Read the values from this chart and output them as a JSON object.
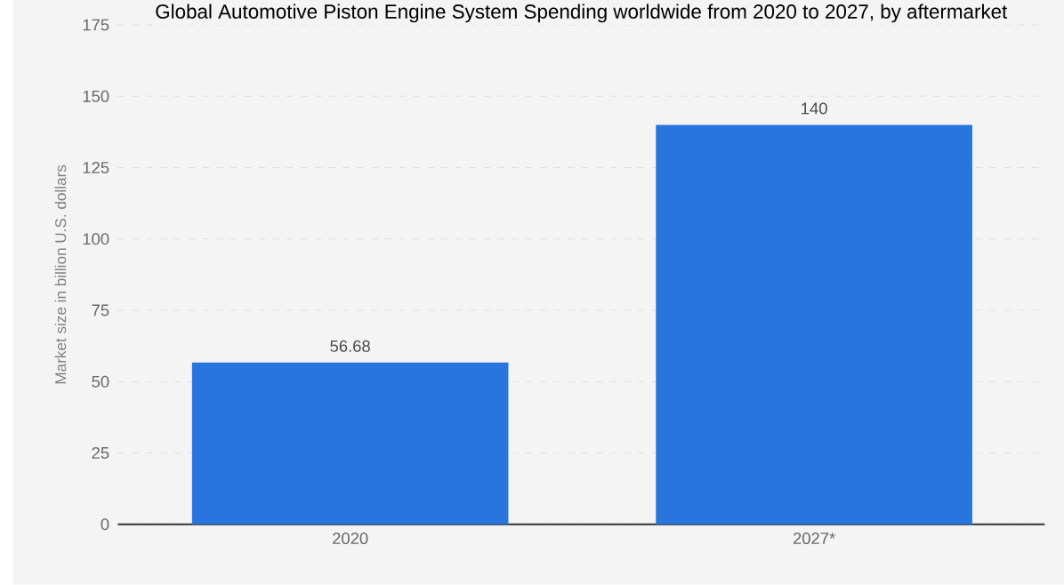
{
  "chart_data": {
    "type": "bar",
    "title": "Global Automotive Piston Engine System Spending worldwide from 2020 to 2027, by aftermarket",
    "ylabel": "Market size in billion U.S. dollars",
    "categories": [
      "2020",
      "2027*"
    ],
    "values": [
      56.68,
      140
    ],
    "color": "#2775dd",
    "ylim": [
      0,
      175
    ],
    "yticks": [
      0,
      25,
      50,
      75,
      100,
      125,
      150,
      175
    ],
    "grid": "y",
    "data_labels": true
  }
}
